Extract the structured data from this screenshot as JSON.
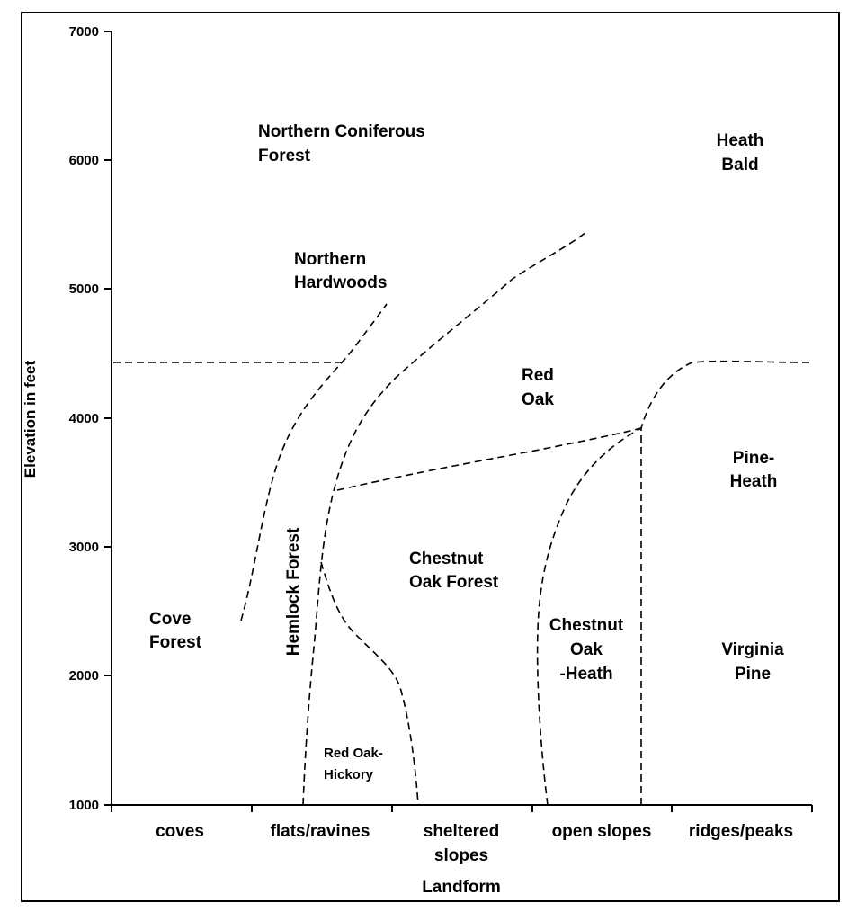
{
  "chart_data": {
    "type": "diagram",
    "y_axis": {
      "label": "Elevation in feet",
      "ticks": [
        "7000",
        "6000",
        "5000",
        "4000",
        "3000",
        "2000",
        "1000"
      ]
    },
    "x_axis": {
      "label": "Landform",
      "categories": [
        {
          "line1": "coves",
          "line2": ""
        },
        {
          "line1": "flats/ravines",
          "line2": ""
        },
        {
          "line1": "sheltered",
          "line2": "slopes"
        },
        {
          "line1": "open slopes",
          "line2": ""
        },
        {
          "line1": "ridges/peaks",
          "line2": ""
        }
      ]
    },
    "zones": [
      {
        "id": "northern-coniferous-forest",
        "lines": [
          "Northern Coniferous",
          "Forest"
        ]
      },
      {
        "id": "heath-bald",
        "lines": [
          "Heath",
          "Bald"
        ]
      },
      {
        "id": "northern-hardwoods",
        "lines": [
          "Northern",
          "Hardwoods"
        ]
      },
      {
        "id": "red-oak",
        "lines": [
          "Red",
          "Oak"
        ]
      },
      {
        "id": "pine-heath",
        "lines": [
          "Pine-",
          "Heath"
        ]
      },
      {
        "id": "chestnut-oak-forest",
        "lines": [
          "Chestnut",
          "Oak  Forest"
        ]
      },
      {
        "id": "cove-forest",
        "lines": [
          "Cove",
          "Forest"
        ]
      },
      {
        "id": "chestnut-oak-heath",
        "lines": [
          "Chestnut",
          "Oak",
          "-Heath"
        ]
      },
      {
        "id": "virginia-pine",
        "lines": [
          "Virginia",
          "Pine"
        ]
      },
      {
        "id": "red-oak-hickory",
        "lines": [
          "Red Oak-",
          "Hickory"
        ]
      },
      {
        "id": "hemlock-forest",
        "lines": [
          "Hemlock Forest"
        ]
      }
    ]
  }
}
